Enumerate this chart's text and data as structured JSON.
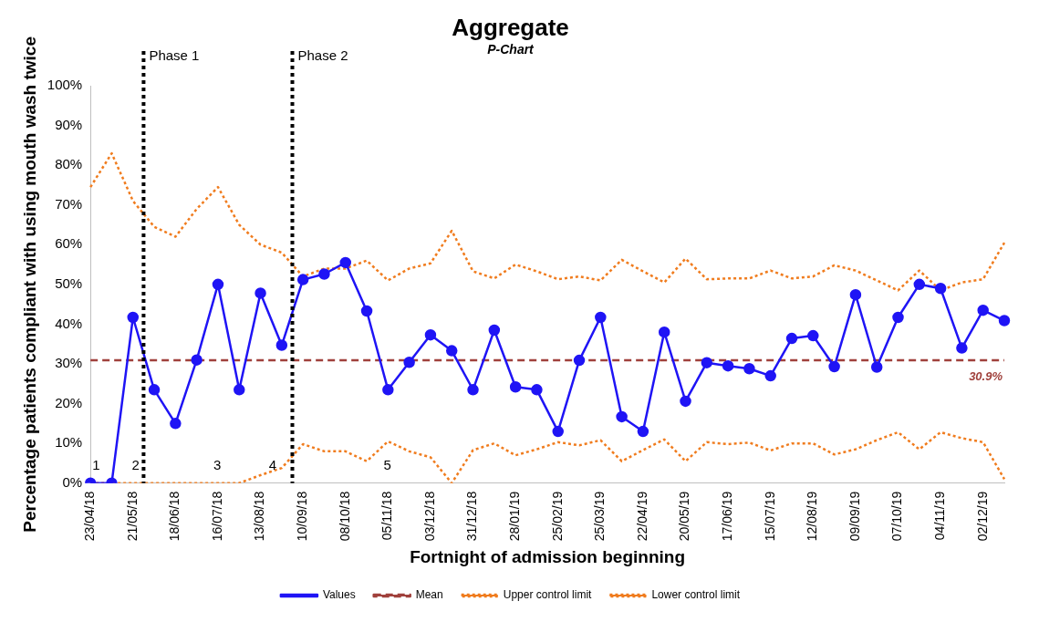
{
  "chart_data": {
    "type": "line",
    "title": "Aggregate",
    "subtitle": "P-Chart",
    "xlabel": "Fortnight of admission beginning",
    "ylabel": "Percentage patients compliant with using mouth wash twice",
    "categories": [
      "23/04/18",
      null,
      "21/05/18",
      null,
      "18/06/18",
      null,
      "16/07/18",
      null,
      "13/08/18",
      null,
      "10/09/18",
      null,
      "08/10/18",
      null,
      "05/11/18",
      null,
      "03/12/18",
      null,
      "31/12/18",
      null,
      "28/01/19",
      null,
      "25/02/19",
      null,
      "25/03/19",
      null,
      "22/04/19",
      null,
      "20/05/19",
      null,
      "17/06/19",
      null,
      "15/07/19",
      null,
      "12/08/19",
      null,
      "09/09/19",
      null,
      "07/10/19",
      null,
      "04/11/19",
      null,
      "02/12/19",
      null
    ],
    "series": [
      {
        "name": "Values",
        "color": "#1f14f5",
        "marker": "circle",
        "line_style": "solid",
        "values": [
          0,
          0,
          41.7,
          23.5,
          15,
          31,
          50,
          23.5,
          47.8,
          34.7,
          51.2,
          52.6,
          55.5,
          43.3,
          23.5,
          30.4,
          37.3,
          33.3,
          23.5,
          38.5,
          24.2,
          23.5,
          13,
          30.9,
          41.7,
          16.7,
          13,
          38,
          20.6,
          30.3,
          29.5,
          28.8,
          27,
          36.4,
          37.1,
          29.3,
          47.4,
          29.2,
          41.7,
          50,
          49,
          34,
          43.5,
          40.9
        ]
      },
      {
        "name": "Mean",
        "color": "#a0413c",
        "marker": "none",
        "line_style": "dashed",
        "values": [
          30.9,
          30.9,
          30.9,
          30.9,
          30.9,
          30.9,
          30.9,
          30.9,
          30.9,
          30.9,
          30.9,
          30.9,
          30.9,
          30.9,
          30.9,
          30.9,
          30.9,
          30.9,
          30.9,
          30.9,
          30.9,
          30.9,
          30.9,
          30.9,
          30.9,
          30.9,
          30.9,
          30.9,
          30.9,
          30.9,
          30.9,
          30.9,
          30.9,
          30.9,
          30.9,
          30.9,
          30.9,
          30.9,
          30.9,
          30.9,
          30.9,
          30.9,
          30.9,
          30.9
        ]
      },
      {
        "name": "Upper control limit",
        "color": "#f07c1e",
        "marker": "none",
        "line_style": "dotted",
        "values": [
          74.5,
          83,
          71,
          64.5,
          62,
          69,
          74.5,
          65,
          60,
          58,
          52,
          54,
          54,
          56,
          51,
          54,
          55.3,
          63.5,
          53.3,
          51.5,
          55,
          53.3,
          51.3,
          52,
          51,
          56.2,
          53.3,
          50.5,
          56.5,
          51.3,
          51.5,
          51.5,
          53.5,
          51.5,
          52,
          54.8,
          53.5,
          51,
          48.5,
          53.5,
          48.5,
          50.5,
          51.3,
          60.5
        ]
      },
      {
        "name": "Lower control limit",
        "color": "#f07c1e",
        "marker": "none",
        "line_style": "dotted",
        "values": [
          0,
          0,
          0,
          0,
          0,
          0,
          0,
          0,
          2,
          3.8,
          9.8,
          8,
          8,
          5.5,
          10.5,
          8,
          6.5,
          0,
          8.3,
          10,
          7,
          8.5,
          10.3,
          9.5,
          10.8,
          5.5,
          8.3,
          11,
          5.5,
          10.3,
          9.8,
          10.2,
          8.2,
          10,
          10,
          7.2,
          8.5,
          10.8,
          12.8,
          8.5,
          12.8,
          11.3,
          10.3,
          1
        ]
      }
    ],
    "ylim": [
      0,
      100
    ],
    "yticks": [
      {
        "value": 0,
        "label": "0%"
      },
      {
        "value": 10,
        "label": "10%"
      },
      {
        "value": 20,
        "label": "20%"
      },
      {
        "value": 30,
        "label": "30%"
      },
      {
        "value": 40,
        "label": "40%"
      },
      {
        "value": 50,
        "label": "50%"
      },
      {
        "value": 60,
        "label": "60%"
      },
      {
        "value": 70,
        "label": "70%"
      },
      {
        "value": 80,
        "label": "80%"
      },
      {
        "value": 90,
        "label": "90%"
      },
      {
        "value": 100,
        "label": "100%"
      }
    ],
    "annotations": [
      "Phase 1",
      "Phase 2",
      "1",
      "2",
      "3",
      "4",
      "5",
      {
        "text": "30.9%",
        "y": 30.9
      }
    ],
    "grid": false,
    "legend": "bottom"
  }
}
